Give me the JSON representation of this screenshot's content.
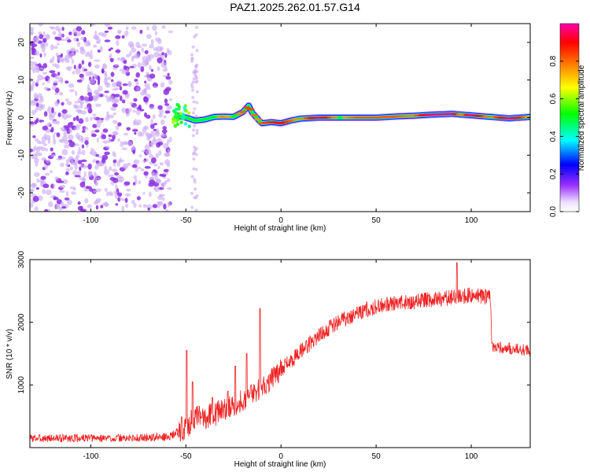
{
  "figure": {
    "title": "PAZ1.2025.262.01.57.G14"
  },
  "chart_data": [
    {
      "type": "heatmap",
      "xlabel": "Height of straight line (km)",
      "ylabel": "Frequency (Hz)",
      "xlim": [
        -132,
        131
      ],
      "ylim": [
        -25,
        25
      ],
      "xticks": [
        -100,
        -50,
        0,
        50,
        100
      ],
      "yticks": [
        -20,
        -10,
        0,
        10,
        20
      ],
      "xtick_labels": [
        "-100",
        "-50",
        "0",
        "50",
        "100"
      ],
      "ytick_labels": [
        "-20",
        "-10",
        "0",
        "10",
        "20"
      ],
      "colorbar": {
        "label": "Normalized spectral amplitude",
        "ticks": [
          0.0,
          0.2,
          0.4,
          0.6,
          0.8
        ],
        "tick_labels": [
          "0.0",
          "0.2",
          "0.4",
          "0.6",
          "0.8"
        ],
        "range": [
          0,
          1
        ],
        "colormap": [
          "#ffffff",
          "#9b30ff",
          "#0000ff",
          "#00ffff",
          "#00ff00",
          "#ffff00",
          "#ff8000",
          "#ff0000",
          "#ff00aa"
        ]
      },
      "signal_track": {
        "x": [
          -54,
          -50,
          -45,
          -40,
          -35,
          -30,
          -25,
          -20,
          -17,
          -15,
          -12,
          -10,
          -5,
          0,
          5,
          10,
          20,
          30,
          40,
          50,
          60,
          70,
          80,
          90,
          95,
          100,
          110,
          120,
          131
        ],
        "freq": [
          0.5,
          0,
          -0.8,
          -0.5,
          0.2,
          0.3,
          0.2,
          1.5,
          3.2,
          1.2,
          -0.5,
          -1.5,
          -1.2,
          -1.5,
          -0.8,
          -0.3,
          0,
          0,
          0,
          0,
          0.3,
          0.5,
          0.8,
          1.0,
          0.8,
          0.6,
          0.2,
          -0.2,
          0.2
        ],
        "amplitude": [
          0.3,
          0.4,
          0.45,
          0.55,
          0.6,
          0.65,
          0.6,
          0.7,
          0.75,
          0.7,
          0.65,
          0.7,
          0.75,
          0.8,
          0.7,
          0.6,
          0.9,
          0.6,
          0.7,
          0.7,
          0.7,
          0.65,
          0.95,
          0.95,
          0.6,
          0.95,
          0.6,
          0.95,
          0.6
        ]
      },
      "noise_region": {
        "x": [
          -132,
          -58
        ],
        "amplitude": 0.15
      }
    },
    {
      "type": "line",
      "xlabel": "Height of straight line (km)",
      "ylabel": "SNR (10 * v/v)",
      "xlim": [
        -132,
        131
      ],
      "ylim": [
        0,
        3000
      ],
      "xticks": [
        -100,
        -50,
        0,
        50,
        100
      ],
      "yticks": [
        1000,
        2000,
        3000
      ],
      "xtick_labels": [
        "-100",
        "-50",
        "0",
        "50",
        "100"
      ],
      "ytick_labels": [
        "1000",
        "2000",
        "3000"
      ],
      "color": "#ee2222",
      "series": [
        {
          "x": [
            -132,
            -120,
            -100,
            -80,
            -60,
            -55,
            -50,
            -45,
            -40,
            -35,
            -30,
            -25,
            -20,
            -15,
            -10,
            -5,
            0,
            10,
            20,
            30,
            40,
            50,
            60,
            70,
            80,
            90,
            95,
            100,
            105,
            110,
            111,
            115,
            120,
            131
          ],
          "values": [
            150,
            150,
            150,
            150,
            170,
            220,
            350,
            450,
            500,
            550,
            600,
            680,
            760,
            870,
            960,
            1100,
            1250,
            1520,
            1800,
            2000,
            2150,
            2250,
            2300,
            2330,
            2360,
            2400,
            2420,
            2430,
            2420,
            2400,
            1620,
            1600,
            1580,
            1550
          ]
        }
      ],
      "spikes": [
        {
          "x": -49.5,
          "y": 1550
        },
        {
          "x": -46.5,
          "y": 1050
        },
        {
          "x": -36,
          "y": 800
        },
        {
          "x": -28,
          "y": 900
        },
        {
          "x": -24,
          "y": 1300
        },
        {
          "x": -18,
          "y": 1500
        },
        {
          "x": -11,
          "y": 2220
        },
        {
          "x": 92.5,
          "y": 2950
        }
      ]
    }
  ]
}
